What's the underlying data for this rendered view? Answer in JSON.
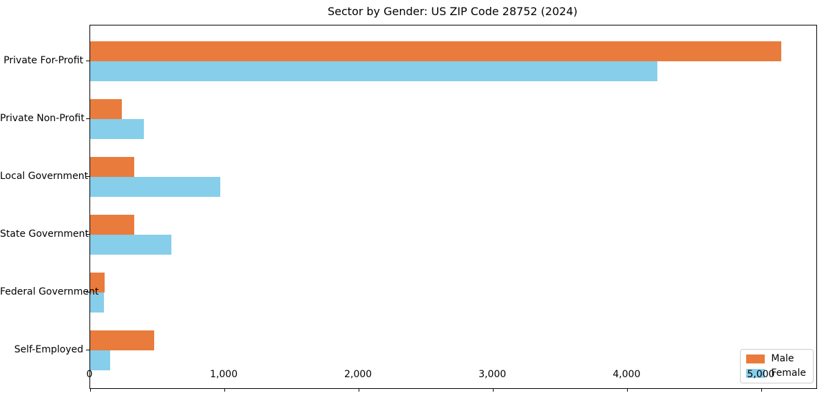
{
  "chart_data": {
    "type": "bar",
    "orientation": "horizontal",
    "title": "Sector by Gender: US ZIP Code 28752 (2024)",
    "categories": [
      "Private For-Profit",
      "Private Non-Profit",
      "Local Government",
      "State Government",
      "Federal Government",
      "Self-Employed"
    ],
    "series": [
      {
        "name": "Male",
        "color": "#e97c3c",
        "values": [
          5145,
          235,
          330,
          330,
          105,
          475
        ]
      },
      {
        "name": "Female",
        "color": "#87ceeb",
        "values": [
          4225,
          400,
          970,
          605,
          100,
          150
        ]
      }
    ],
    "xlabel": "",
    "ylabel": "",
    "xlim": [
      0,
      5408
    ],
    "xticks": [
      0,
      1000,
      2000,
      3000,
      4000,
      5000
    ],
    "xtick_labels": [
      "0",
      "1,000",
      "2,000",
      "3,000",
      "4,000",
      "5,000"
    ],
    "legend_position": "lower right",
    "grid": false,
    "background_color": "#ffffff",
    "text_color": "#000000"
  }
}
